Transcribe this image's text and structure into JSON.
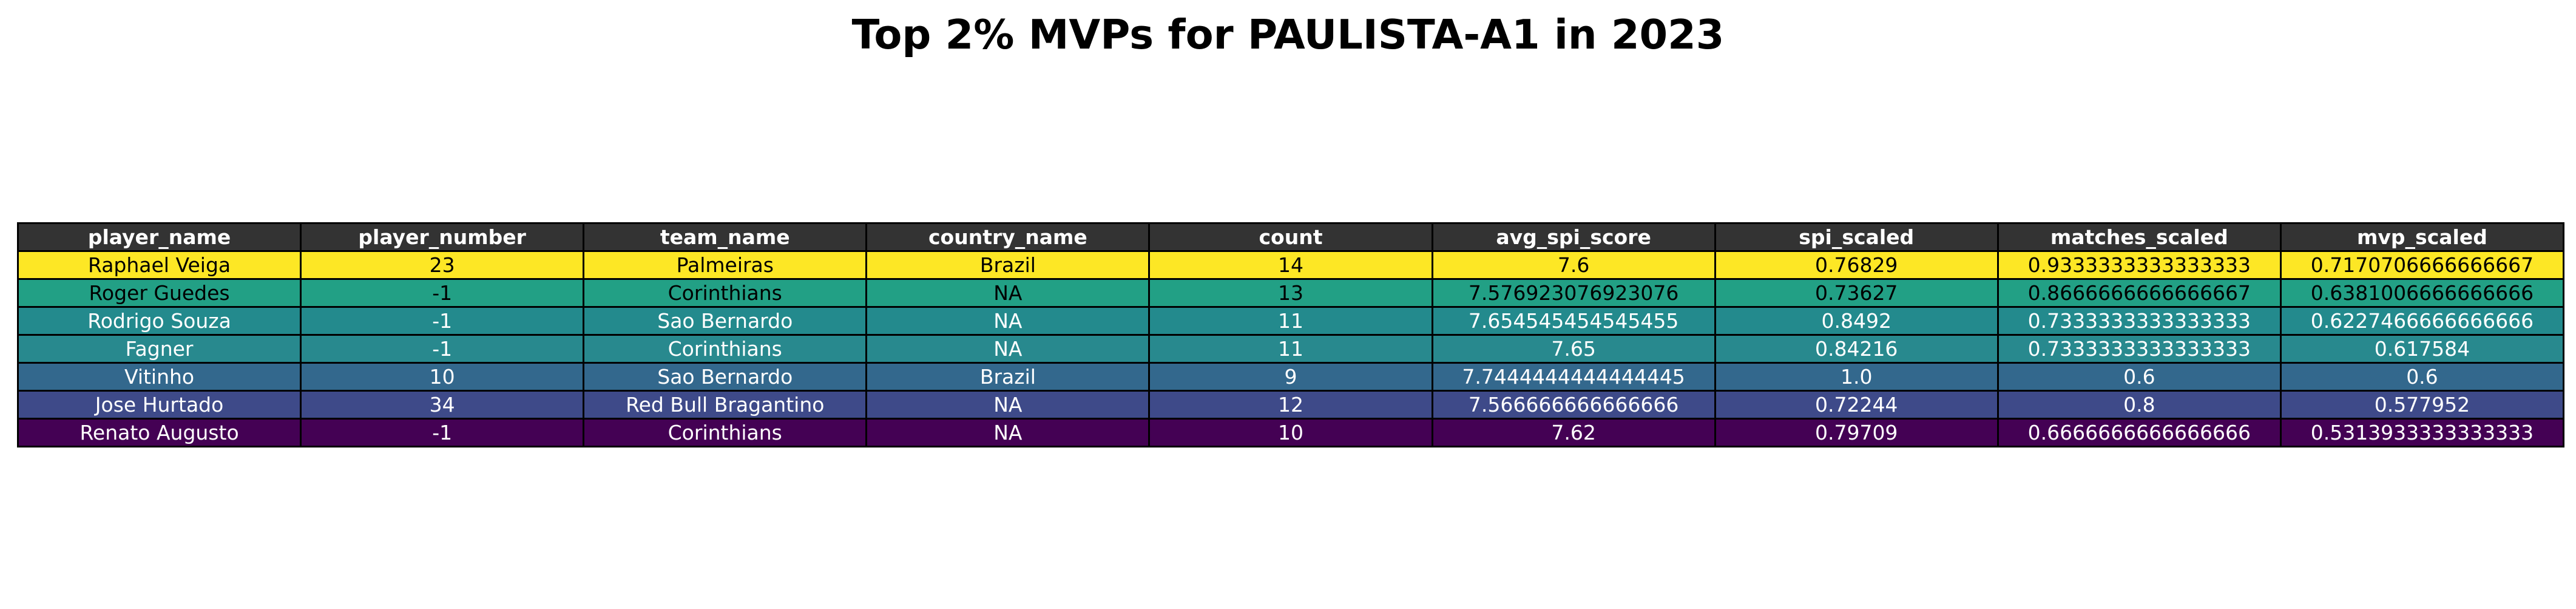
{
  "chart_data": {
    "type": "table",
    "title": "Top 2% MVPs for PAULISTA-A1 in 2023",
    "columns": [
      "player_name",
      "player_number",
      "team_name",
      "country_name",
      "count",
      "avg_spi_score",
      "spi_scaled",
      "matches_scaled",
      "mvp_scaled"
    ],
    "rows": [
      [
        "Raphael Veiga",
        "23",
        "Palmeiras",
        "Brazil",
        "14",
        "7.6",
        "0.76829",
        "0.9333333333333333",
        "0.7170706666666667"
      ],
      [
        "Roger Guedes",
        "-1",
        "Corinthians",
        "NA",
        "13",
        "7.576923076923076",
        "0.73627",
        "0.8666666666666667",
        "0.6381006666666666"
      ],
      [
        "Rodrigo Souza",
        "-1",
        "Sao Bernardo",
        "NA",
        "11",
        "7.654545454545455",
        "0.8492",
        "0.7333333333333333",
        "0.6227466666666666"
      ],
      [
        "Fagner",
        "-1",
        "Corinthians",
        "NA",
        "11",
        "7.65",
        "0.84216",
        "0.7333333333333333",
        "0.617584"
      ],
      [
        "Vitinho",
        "10",
        "Sao Bernardo",
        "Brazil",
        "9",
        "7.7444444444444445",
        "1.0",
        "0.6",
        "0.6"
      ],
      [
        "Jose Hurtado",
        "34",
        "Red Bull Bragantino",
        "NA",
        "12",
        "7.566666666666666",
        "0.72244",
        "0.8",
        "0.577952"
      ],
      [
        "Renato Augusto",
        "-1",
        "Corinthians",
        "NA",
        "10",
        "7.62",
        "0.79709",
        "0.6666666666666666",
        "0.5313933333333333"
      ]
    ],
    "header_color": "#333333",
    "header_text_color": "#ffffff",
    "row_colors": [
      "#fde725",
      "#22a085",
      "#238a8d",
      "#28898e",
      "#33688d",
      "#3e4a89",
      "#440154"
    ],
    "row_text_colors": [
      "#000000",
      "#000000",
      "#ffffff",
      "#ffffff",
      "#ffffff",
      "#ffffff",
      "#ffffff"
    ]
  }
}
